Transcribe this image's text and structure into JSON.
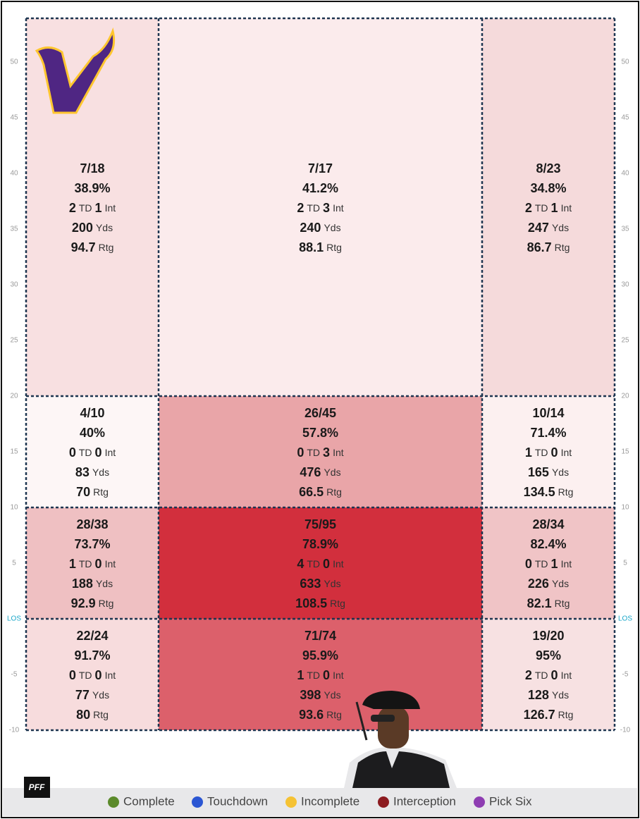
{
  "field": {
    "yticks": [
      50,
      45,
      40,
      35,
      30,
      25,
      20,
      15,
      10,
      5,
      {
        "value": 0,
        "label": "LOS"
      },
      -5,
      -10
    ],
    "labels": {
      "td": "TD",
      "int": "Int",
      "yds": "Yds",
      "rtg": "Rtg"
    },
    "zones": [
      {
        "comp": "7/18",
        "pct": "38.9%",
        "td": 2,
        "int": 1,
        "yds": 200,
        "rtg": 94.7,
        "color": "#f8e0e1"
      },
      {
        "comp": "7/17",
        "pct": "41.2%",
        "td": 2,
        "int": 3,
        "yds": 240,
        "rtg": 88.1,
        "color": "#fbebec"
      },
      {
        "comp": "8/23",
        "pct": "34.8%",
        "td": 2,
        "int": 1,
        "yds": 247,
        "rtg": 86.7,
        "color": "#f5dadb"
      },
      {
        "comp": "4/10",
        "pct": "40%",
        "td": 0,
        "int": 0,
        "yds": 83,
        "rtg": 70,
        "color": "#fdf6f6"
      },
      {
        "comp": "26/45",
        "pct": "57.8%",
        "td": 0,
        "int": 3,
        "yds": 476,
        "rtg": 66.5,
        "color": "#e9a5a8"
      },
      {
        "comp": "10/14",
        "pct": "71.4%",
        "td": 1,
        "int": 0,
        "yds": 165,
        "rtg": 134.5,
        "color": "#fcf0f0"
      },
      {
        "comp": "28/38",
        "pct": "73.7%",
        "td": 1,
        "int": 0,
        "yds": 188,
        "rtg": 92.9,
        "color": "#efc0c2"
      },
      {
        "comp": "75/95",
        "pct": "78.9%",
        "td": 4,
        "int": 0,
        "yds": 633,
        "rtg": 108.5,
        "color": "#d22f3d"
      },
      {
        "comp": "28/34",
        "pct": "82.4%",
        "td": 0,
        "int": 1,
        "yds": 226,
        "rtg": 82.1,
        "color": "#f0c4c6"
      },
      {
        "comp": "22/24",
        "pct": "91.7%",
        "td": 0,
        "int": 0,
        "yds": 77,
        "rtg": 80,
        "color": "#f7dcdd"
      },
      {
        "comp": "71/74",
        "pct": "95.9%",
        "td": 1,
        "int": 0,
        "yds": 398,
        "rtg": 93.6,
        "color": "#dc606b"
      },
      {
        "comp": "19/20",
        "pct": "95%",
        "td": 2,
        "int": 0,
        "yds": 128,
        "rtg": 126.7,
        "color": "#f7e1e2"
      }
    ]
  },
  "legend": [
    {
      "name": "Complete",
      "color": "#5b8a2b"
    },
    {
      "name": "Touchdown",
      "color": "#2b56d3"
    },
    {
      "name": "Incomplete",
      "color": "#f5c234"
    },
    {
      "name": "Interception",
      "color": "#8c1b20"
    },
    {
      "name": "Pick Six",
      "color": "#8e3db2"
    }
  ],
  "brand": "PFF"
}
